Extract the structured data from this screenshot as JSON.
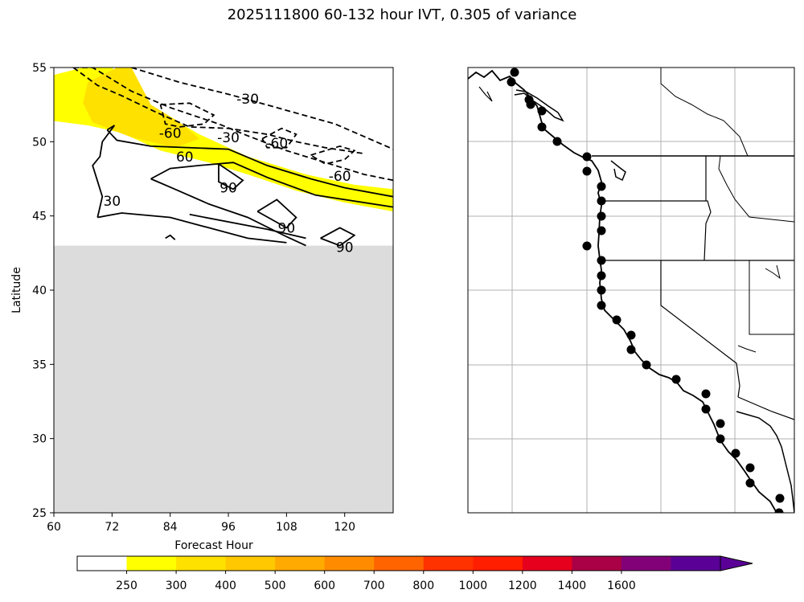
{
  "title": "2025111800 60-132 hour IVT, 0.305 of variance",
  "chart_data": [
    {
      "type": "contour",
      "xlabel": "Forecast Hour",
      "ylabel": "Latitude",
      "xlim": [
        60,
        130
      ],
      "ylim": [
        25,
        55
      ],
      "xticks": [
        60,
        72,
        84,
        96,
        108,
        120
      ],
      "yticks": [
        25,
        30,
        35,
        40,
        45,
        50,
        55
      ],
      "masked_region_lat_max": 43,
      "filled_levels": [
        {
          "min": 250,
          "max": 300,
          "color": "#ffff00",
          "region": [
            [
              60,
              54.5
            ],
            [
              66,
              55
            ],
            [
              72,
              55
            ],
            [
              76,
              53.2
            ],
            [
              82,
              52
            ],
            [
              90,
              50.5
            ],
            [
              100,
              49
            ],
            [
              112,
              47.8
            ],
            [
              122,
              47.1
            ],
            [
              130,
              46.8
            ],
            [
              130,
              45.3
            ],
            [
              120,
              45.9
            ],
            [
              110,
              46.7
            ],
            [
              100,
              47.8
            ],
            [
              92,
              48.6
            ],
            [
              82,
              49.4
            ],
            [
              74,
              50.6
            ],
            [
              67,
              51.1
            ],
            [
              60,
              51.4
            ]
          ]
        },
        {
          "min": 300,
          "max": 400,
          "color": "#ffe100",
          "region": [
            [
              67,
              54
            ],
            [
              73,
              55
            ],
            [
              76,
              55
            ],
            [
              80,
              52.5
            ],
            [
              86,
              51.3
            ],
            [
              90,
              50.2
            ],
            [
              85,
              49.6
            ],
            [
              76,
              50.3
            ],
            [
              68,
              51.3
            ],
            [
              66,
              52.6
            ]
          ]
        }
      ],
      "contours": [
        {
          "style": "dashed",
          "points": [
            [
              64,
              55
            ],
            [
              69,
              53.8
            ],
            [
              74,
              53.1
            ],
            [
              81,
              52
            ],
            [
              88,
              51
            ],
            [
              96,
              50.9
            ],
            [
              104,
              50.5
            ],
            [
              110,
              50
            ],
            [
              116,
              49.6
            ],
            [
              124,
              49.2
            ]
          ],
          "label": "-60",
          "label_at": [
            84,
            50.6
          ]
        },
        {
          "style": "dashed",
          "points": [
            [
              82,
              52.5
            ],
            [
              88,
              52.6
            ],
            [
              93,
              51.8
            ],
            [
              91,
              51.2
            ],
            [
              86,
              51.0
            ],
            [
              83,
              51.2
            ],
            [
              82,
              52.5
            ]
          ]
        },
        {
          "style": "dashed",
          "points": [
            [
              64,
              55
            ],
            [
              68,
              55
            ],
            [
              76,
              53.4
            ],
            [
              84,
              52.3
            ],
            [
              94,
              51.2
            ],
            [
              100,
              50.4
            ],
            [
              108,
              49.4
            ],
            [
              116,
              48.6
            ],
            [
              124,
              47.8
            ],
            [
              130,
              47.4
            ]
          ],
          "label": "-30",
          "label_at": [
            96,
            50.3
          ]
        },
        {
          "style": "dashed",
          "points": [
            [
              76,
              55
            ],
            [
              86,
              54
            ],
            [
              96,
              53.2
            ],
            [
              106,
              52.3
            ],
            [
              118,
              51.2
            ],
            [
              130,
              49.5
            ]
          ],
          "label": "-30",
          "label_at": [
            100,
            52.9
          ]
        },
        {
          "style": "dashed",
          "points": [
            [
              103,
              50.2
            ],
            [
              107,
              50.9
            ],
            [
              110,
              50.5
            ],
            [
              108,
              49.6
            ],
            [
              104,
              49.6
            ],
            [
              103,
              50.2
            ]
          ],
          "label": "-60",
          "label_at": [
            106,
            49.9
          ]
        },
        {
          "style": "dashed",
          "points": [
            [
              113,
              49.1
            ],
            [
              119,
              49.7
            ],
            [
              122,
              49.4
            ],
            [
              120,
              48.8
            ],
            [
              116,
              48.5
            ],
            [
              113,
              49.1
            ]
          ],
          "label": "-60",
          "label_at": [
            119,
            47.7
          ]
        },
        {
          "style": "solid",
          "points": [
            [
              71,
              50.8
            ],
            [
              73,
              50.1
            ],
            [
              80,
              49.7
            ],
            [
              96,
              49.5
            ],
            [
              104,
              48.4
            ],
            [
              113,
              47.5
            ],
            [
              120,
              46.9
            ],
            [
              130,
              46.3
            ]
          ]
        },
        {
          "style": "solid",
          "points": [
            [
              69,
              44.9
            ],
            [
              74,
              45.2
            ],
            [
              84,
              44.9
            ],
            [
              100,
              43.5
            ],
            [
              108,
              43.2
            ]
          ],
          "label": "30",
          "label_at": [
            72,
            46.0
          ]
        },
        {
          "style": "solid",
          "points": [
            [
              71,
              50.8
            ],
            [
              72.5,
              51.1
            ],
            [
              70,
              50
            ],
            [
              69.5,
              49
            ],
            [
              68,
              48.4
            ],
            [
              70,
              46.3
            ],
            [
              69,
              44.9
            ]
          ]
        },
        {
          "style": "solid",
          "points": [
            [
              88,
              45.1
            ],
            [
              104,
              44.1
            ],
            [
              112,
              43.5
            ]
          ]
        },
        {
          "style": "solid",
          "points": [
            [
              80,
              47.5
            ],
            [
              84,
              48.2
            ],
            [
              90,
              48.4
            ],
            [
              97,
              48.6
            ],
            [
              104,
              47.6
            ],
            [
              114,
              46.4
            ],
            [
              130,
              45.6
            ]
          ],
          "label": "60",
          "label_at": [
            87,
            49.0
          ]
        },
        {
          "style": "solid",
          "points": [
            [
              80,
              47.5
            ],
            [
              85,
              46.8
            ],
            [
              92,
              45.8
            ],
            [
              100,
              44.9
            ],
            [
              108,
              43.6
            ],
            [
              112,
              43.0
            ]
          ]
        },
        {
          "style": "solid",
          "points": [
            [
              94,
              48.5
            ],
            [
              99,
              47.4
            ],
            [
              97,
              46.8
            ],
            [
              94,
              47.3
            ],
            [
              94,
              48.5
            ]
          ],
          "label": "90",
          "label_at": [
            96,
            46.9
          ]
        },
        {
          "style": "solid",
          "points": [
            [
              102,
              45.3
            ],
            [
              106,
              46.1
            ],
            [
              110,
              44.9
            ],
            [
              108,
              44.2
            ],
            [
              102,
              45.3
            ]
          ],
          "label": "90",
          "label_at": [
            108,
            44.2
          ]
        },
        {
          "style": "solid",
          "points": [
            [
              115,
              43.5
            ],
            [
              119,
              44.2
            ],
            [
              122,
              43.7
            ],
            [
              119,
              43.0
            ],
            [
              115,
              43.5
            ]
          ],
          "label": "90",
          "label_at": [
            120,
            42.9
          ]
        },
        {
          "style": "solid",
          "points": [
            [
              83,
              43.5
            ],
            [
              84,
              43.7
            ],
            [
              85,
              43.4
            ]
          ]
        }
      ]
    },
    {
      "type": "map",
      "points_count": 32
    }
  ],
  "colorbar": {
    "ticks": [
      "250",
      "300",
      "400",
      "500",
      "600",
      "700",
      "800",
      "1000",
      "1200",
      "1400",
      "1600"
    ],
    "colors": [
      "#ffffff",
      "#ffff00",
      "#ffe100",
      "#ffc800",
      "#ffaa00",
      "#ff8c00",
      "#ff6400",
      "#ff3200",
      "#ff1e00",
      "#e6001e",
      "#aa0046",
      "#820078",
      "#5a0096"
    ],
    "extend": "max"
  }
}
